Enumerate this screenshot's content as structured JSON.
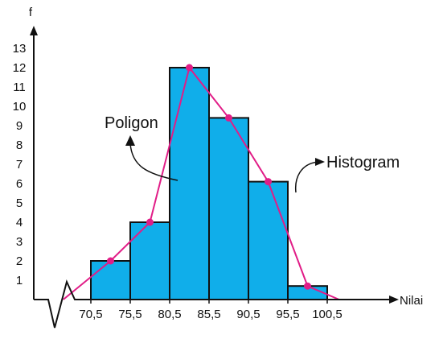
{
  "chart_data": {
    "type": "bar",
    "title": "",
    "ylabel": "f",
    "xlabel": "Nilai",
    "x_tick_labels": [
      "70,5",
      "75,5",
      "80,5",
      "85,5",
      "90,5",
      "95,5",
      "100,5"
    ],
    "y_tick_labels": [
      "1",
      "2",
      "3",
      "4",
      "5",
      "6",
      "7",
      "8",
      "9",
      "10",
      "11",
      "12",
      "13"
    ],
    "ylim": [
      0,
      13
    ],
    "bins": [
      {
        "start": 70.5,
        "end": 75.5,
        "value": 2
      },
      {
        "start": 75.5,
        "end": 80.5,
        "value": 4
      },
      {
        "start": 80.5,
        "end": 85.5,
        "value": 12
      },
      {
        "start": 85.5,
        "end": 90.5,
        "value": 9.4
      },
      {
        "start": 90.5,
        "end": 95.5,
        "value": 6.1
      },
      {
        "start": 95.5,
        "end": 100.5,
        "value": 0.7
      }
    ],
    "polygon": {
      "x": [
        67.0,
        73.0,
        78.0,
        83.0,
        88.0,
        93.0,
        98.0,
        102.0
      ],
      "y": [
        0,
        2,
        4,
        12,
        9.4,
        6.1,
        0.7,
        0
      ]
    },
    "annotations": {
      "polygon_label": "Poligon",
      "histogram_label": "Histogram"
    },
    "colors": {
      "bar_fill": "#10aeea",
      "bar_stroke": "#111111",
      "polygon_line": "#e11d87",
      "polygon_point": "#e11d87",
      "axis": "#111111"
    }
  }
}
